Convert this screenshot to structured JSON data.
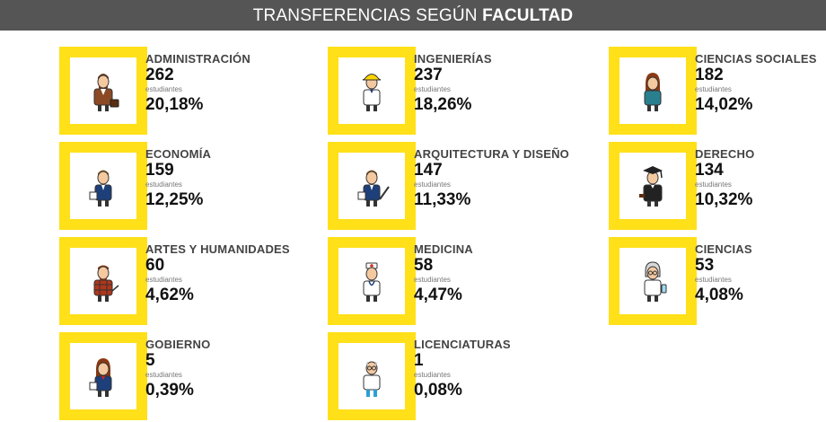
{
  "title": {
    "light": "TRANSFERENCIAS SEGÚN",
    "bold": "FACULTAD"
  },
  "colors": {
    "frame": "#ffe019",
    "header_bg": "#555555"
  },
  "chart_data": {
    "type": "table",
    "title": "TRANSFERENCIAS SEGÚN FACULTAD",
    "unit_label": "estudiantes",
    "rows": [
      {
        "faculty": "ADMINISTRACIÓN",
        "count": "262",
        "percent": "20,18%",
        "icon": "businessman-briefcase-icon"
      },
      {
        "faculty": "INGENIERÍAS",
        "count": "237",
        "percent": "18,26%",
        "icon": "engineer-hardhat-icon"
      },
      {
        "faculty": "CIENCIAS SOCIALES",
        "count": "182",
        "percent": "14,02%",
        "icon": "woman-social-scientist-icon"
      },
      {
        "faculty": "ECONOMÍA",
        "count": "159",
        "percent": "12,25%",
        "icon": "economist-icon"
      },
      {
        "faculty": "ARQUITECTURA Y DISEÑO",
        "count": "147",
        "percent": "11,33%",
        "icon": "architect-icon"
      },
      {
        "faculty": "DERECHO",
        "count": "134",
        "percent": "10,32%",
        "icon": "graduate-lawyer-icon"
      },
      {
        "faculty": "ARTES Y HUMANIDADES",
        "count": "60",
        "percent": "4,62%",
        "icon": "artist-plaid-icon"
      },
      {
        "faculty": "MEDICINA",
        "count": "58",
        "percent": "4,47%",
        "icon": "doctor-icon"
      },
      {
        "faculty": "CIENCIAS",
        "count": "53",
        "percent": "4,08%",
        "icon": "scientist-icon"
      },
      {
        "faculty": "GOBIERNO",
        "count": "5",
        "percent": "0,39%",
        "icon": "woman-government-icon"
      },
      {
        "faculty": "LICENCIATURAS",
        "count": "1",
        "percent": "0,08%",
        "icon": "teacher-icon"
      }
    ]
  }
}
